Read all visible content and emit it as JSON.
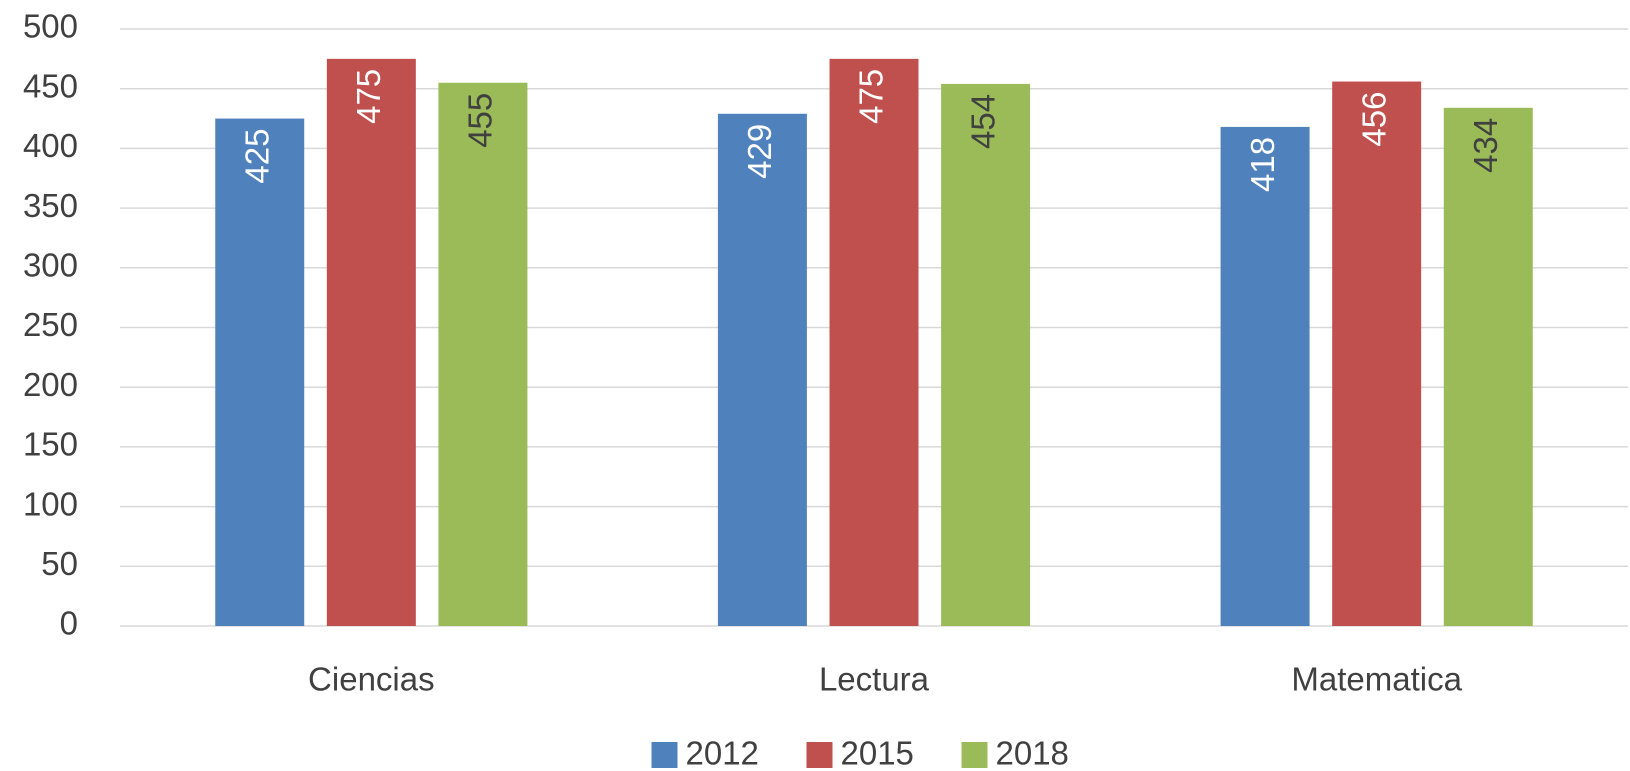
{
  "chart_data": {
    "type": "bar",
    "categories": [
      "Ciencias",
      "Lectura",
      "Matematica"
    ],
    "series": [
      {
        "name": "2012",
        "color": "#4f81bd",
        "label_color": "#ffffff",
        "values": [
          425,
          429,
          418
        ]
      },
      {
        "name": "2015",
        "color": "#c0504d",
        "label_color": "#ffffff",
        "values": [
          475,
          475,
          456
        ]
      },
      {
        "name": "2018",
        "color": "#9bbb59",
        "label_color": "#404040",
        "values": [
          455,
          454,
          434
        ]
      }
    ],
    "ylim": [
      0,
      500
    ],
    "yticks": [
      0,
      50,
      100,
      150,
      200,
      250,
      300,
      350,
      400,
      450,
      500
    ],
    "grid": true,
    "legend": "bottom"
  }
}
